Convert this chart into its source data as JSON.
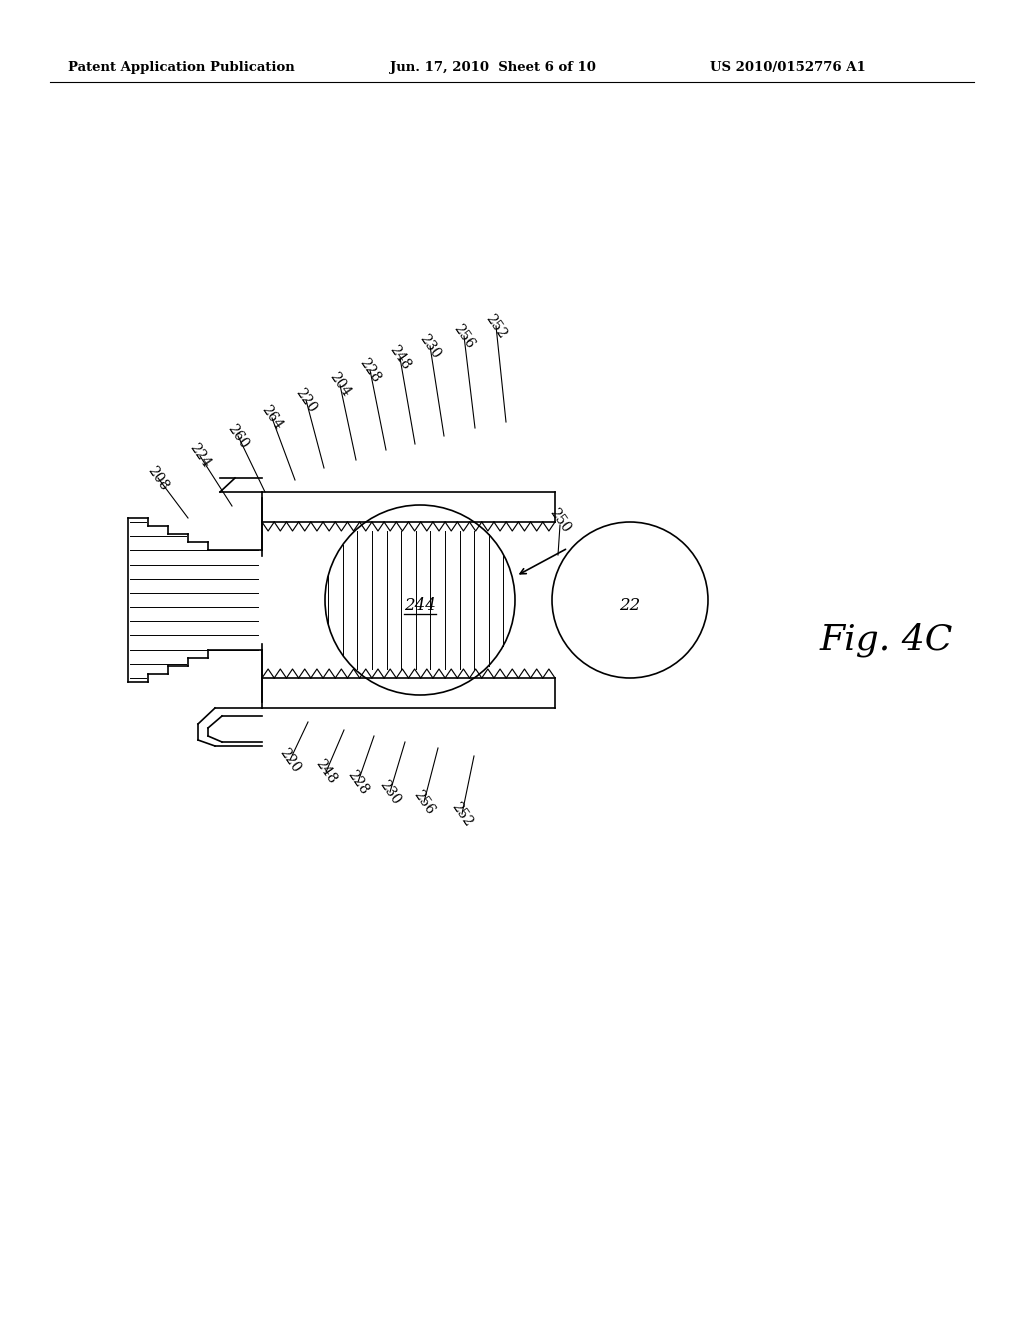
{
  "background_color": "#ffffff",
  "header_left": "Patent Application Publication",
  "header_center": "Jun. 17, 2010  Sheet 6 of 10",
  "header_right": "US 2010/0152776 A1",
  "fig_label": "Fig. 4C",
  "center_label": "244",
  "circle_label": "22",
  "lw": 1.2
}
